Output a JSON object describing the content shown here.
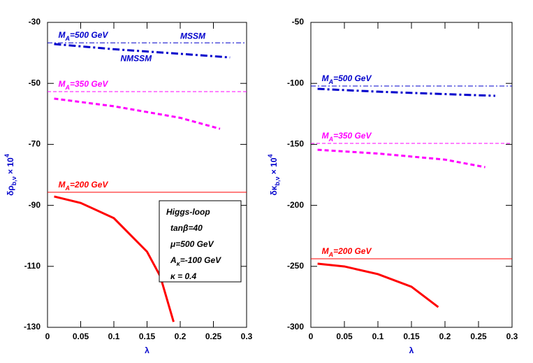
{
  "chart_data": [
    {
      "type": "line",
      "x_label": [
        {
          "text": "λ"
        }
      ],
      "y_label": [
        {
          "text": "δρ"
        },
        {
          "text": "b,ν",
          "shift": "sub"
        },
        {
          "text": " × 10"
        },
        {
          "text": "4",
          "shift": "super"
        }
      ],
      "xlim": [
        0,
        0.3
      ],
      "xticks": [
        0,
        0.05,
        0.1,
        0.15,
        0.2,
        0.25,
        0.3
      ],
      "ylim": [
        -130,
        -30
      ],
      "yticks": [
        -130,
        -110,
        -90,
        -70,
        -50,
        -30
      ],
      "series": [
        {
          "name": "MSSM",
          "color": "#0000cc",
          "linestyle": "dashdot",
          "linewidth": 1,
          "x": [
            0,
            0.3
          ],
          "values": [
            -36.7,
            -36.7
          ],
          "label": [
            {
              "text": "M"
            },
            {
              "text": "A",
              "shift": "sub"
            },
            {
              "text": "=500 GeV"
            }
          ]
        },
        {
          "name": "NMSSM",
          "color": "#0000cc",
          "linestyle": "dashdot",
          "linewidth": 3,
          "x": [
            0.01,
            0.1,
            0.2,
            0.275
          ],
          "values": [
            -37.1,
            -38.8,
            -40.3,
            -41.5
          ]
        },
        {
          "color": "#ff00ff",
          "linestyle": "dashed",
          "linewidth": 1,
          "x": [
            0,
            0.3
          ],
          "values": [
            -52.7,
            -52.7
          ],
          "label": [
            {
              "text": "M"
            },
            {
              "text": "A",
              "shift": "sub"
            },
            {
              "text": "=350 GeV"
            }
          ]
        },
        {
          "color": "#ff00ff",
          "linestyle": "dashed",
          "linewidth": 3,
          "x": [
            0.01,
            0.1,
            0.2,
            0.26
          ],
          "values": [
            -55,
            -57.5,
            -61.3,
            -64.9
          ]
        },
        {
          "color": "#ff0000",
          "linestyle": "solid",
          "linewidth": 1,
          "x": [
            0,
            0.3
          ],
          "values": [
            -85.7,
            -85.7
          ],
          "label": [
            {
              "text": "M"
            },
            {
              "text": "A",
              "shift": "sub"
            },
            {
              "text": "=200 GeV"
            }
          ]
        },
        {
          "color": "#ff0000",
          "linestyle": "solid",
          "linewidth": 3,
          "x": [
            0.01,
            0.05,
            0.1,
            0.15,
            0.17,
            0.19
          ],
          "values": [
            -87.1,
            -89.2,
            -94.2,
            -105.2,
            -113.3,
            -128.2
          ]
        }
      ],
      "box": [
        [
          {
            "text": "Higgs-loop"
          }
        ],
        [
          {
            "text": "tanβ=40"
          }
        ],
        [
          {
            "text": "μ=500 GeV"
          }
        ],
        [
          {
            "text": "A"
          },
          {
            "text": "κ",
            "shift": "sub"
          },
          {
            "text": "=-100 GeV"
          }
        ],
        [
          {
            "text": "κ = 0.4"
          }
        ]
      ]
    },
    {
      "type": "line",
      "x_label": [
        {
          "text": "λ"
        }
      ],
      "y_label": [
        {
          "text": "δκ"
        },
        {
          "text": "b,ν",
          "shift": "sub"
        },
        {
          "text": " × 10"
        },
        {
          "text": "4",
          "shift": "super"
        }
      ],
      "xlim": [
        0,
        0.3
      ],
      "xticks": [
        0,
        0.05,
        0.1,
        0.15,
        0.2,
        0.25,
        0.3
      ],
      "ylim": [
        -300,
        -50
      ],
      "yticks": [
        -300,
        -250,
        -200,
        -150,
        -100,
        -50
      ],
      "series": [
        {
          "color": "#0000cc",
          "linestyle": "dashdot",
          "linewidth": 1,
          "x": [
            0,
            0.3
          ],
          "values": [
            -102.2,
            -102.2
          ],
          "label": [
            {
              "text": "M"
            },
            {
              "text": "A",
              "shift": "sub"
            },
            {
              "text": "=500 GeV"
            }
          ]
        },
        {
          "color": "#0000cc",
          "linestyle": "dashdot",
          "linewidth": 3,
          "x": [
            0.01,
            0.1,
            0.2,
            0.275
          ],
          "values": [
            -104.5,
            -106.8,
            -108.8,
            -110.2
          ]
        },
        {
          "color": "#ff00ff",
          "linestyle": "dashed",
          "linewidth": 1,
          "x": [
            0,
            0.3
          ],
          "values": [
            -149.2,
            -149.2
          ],
          "label": [
            {
              "text": "M"
            },
            {
              "text": "A",
              "shift": "sub"
            },
            {
              "text": "=350 GeV"
            }
          ]
        },
        {
          "color": "#ff00ff",
          "linestyle": "dashed",
          "linewidth": 3,
          "x": [
            0.01,
            0.1,
            0.2,
            0.26
          ],
          "values": [
            -154.4,
            -157.5,
            -162.5,
            -168.7
          ]
        },
        {
          "color": "#ff0000",
          "linestyle": "solid",
          "linewidth": 1,
          "x": [
            0,
            0.3
          ],
          "values": [
            -243.8,
            -243.8
          ],
          "label": [
            {
              "text": "M"
            },
            {
              "text": "A",
              "shift": "sub"
            },
            {
              "text": "=200 GeV"
            }
          ]
        },
        {
          "color": "#ff0000",
          "linestyle": "solid",
          "linewidth": 3,
          "x": [
            0.01,
            0.05,
            0.1,
            0.15,
            0.19
          ],
          "values": [
            -247.8,
            -250.1,
            -256.4,
            -266.7,
            -283.4
          ]
        }
      ]
    }
  ]
}
